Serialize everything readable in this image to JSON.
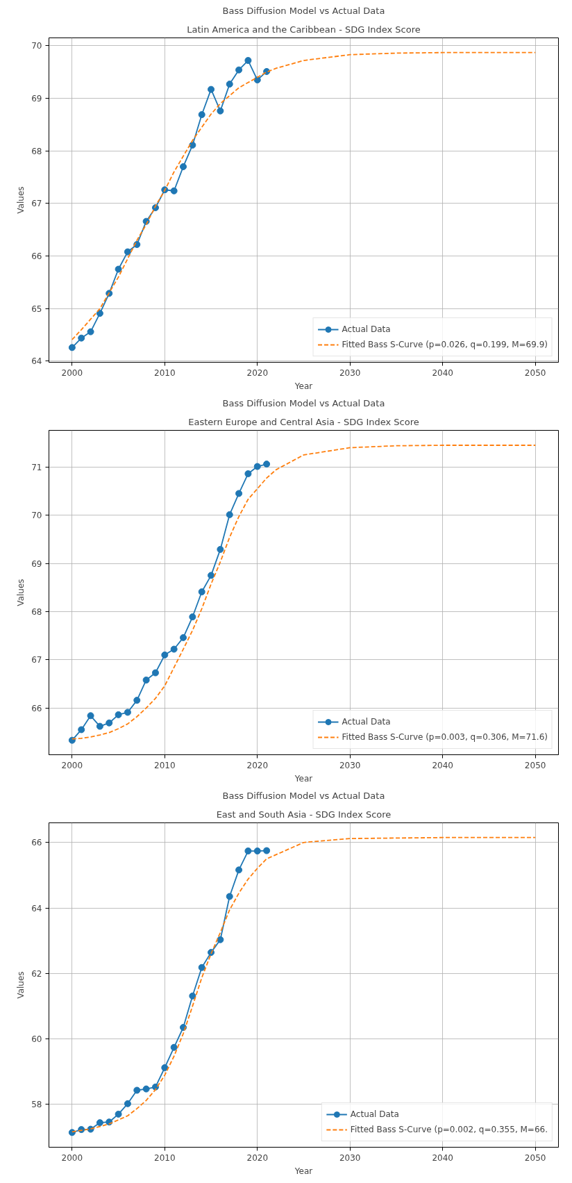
{
  "chart_data": [
    {
      "type": "line",
      "title": "Bass Diffusion Model vs Actual Data",
      "subtitle": "Latin America and the Caribbean - SDG Index Score",
      "xlabel": "Year",
      "ylabel": "Values",
      "xlim": [
        1997.5,
        2052.5
      ],
      "ylim": [
        63.98,
        70.15
      ],
      "xticks": [
        2000,
        2010,
        2020,
        2030,
        2040,
        2050
      ],
      "yticks": [
        64,
        65,
        66,
        67,
        68,
        69,
        70
      ],
      "grid": true,
      "legend": "bottom right",
      "series": [
        {
          "name": "Actual Data",
          "color": "#1f77b4",
          "marker": "circle",
          "line_style": "solid",
          "x": [
            2000,
            2001,
            2002,
            2003,
            2004,
            2005,
            2006,
            2007,
            2008,
            2009,
            2010,
            2011,
            2012,
            2013,
            2014,
            2015,
            2016,
            2017,
            2018,
            2019,
            2020,
            2021
          ],
          "values": [
            64.26,
            64.44,
            64.56,
            64.91,
            65.29,
            65.75,
            66.08,
            66.22,
            66.66,
            66.92,
            67.26,
            67.24,
            67.7,
            68.11,
            68.69,
            69.17,
            68.76,
            69.27,
            69.54,
            69.72,
            69.35,
            69.51
          ]
        },
        {
          "name": "Fitted Bass S-Curve (p=0.026, q=0.199, M=69.9)",
          "color": "#ff7f0e",
          "marker": "none",
          "line_style": "dashed",
          "x": [
            2000,
            2001,
            2002,
            2003,
            2004,
            2005,
            2006,
            2007,
            2008,
            2009,
            2010,
            2011,
            2012,
            2013,
            2014,
            2015,
            2016,
            2017,
            2018,
            2019,
            2020,
            2021,
            2022,
            2025,
            2030,
            2035,
            2040,
            2050
          ],
          "values": [
            64.41,
            64.6,
            64.8,
            65.0,
            65.3,
            65.6,
            65.95,
            66.3,
            66.6,
            66.95,
            67.25,
            67.6,
            67.9,
            68.2,
            68.45,
            68.7,
            68.9,
            69.05,
            69.2,
            69.3,
            69.4,
            69.5,
            69.57,
            69.72,
            69.83,
            69.86,
            69.87,
            69.87
          ]
        }
      ]
    },
    {
      "type": "line",
      "title": "Bass Diffusion Model vs Actual Data",
      "subtitle": "Eastern Europe and Central Asia - SDG Index Score",
      "xlabel": "Year",
      "ylabel": "Values",
      "xlim": [
        1997.5,
        2052.5
      ],
      "ylim": [
        65.03,
        71.76
      ],
      "xticks": [
        2000,
        2010,
        2020,
        2030,
        2040,
        2050
      ],
      "yticks": [
        66,
        67,
        68,
        69,
        70,
        71
      ],
      "grid": true,
      "legend": "bottom right",
      "series": [
        {
          "name": "Actual Data",
          "color": "#1f77b4",
          "marker": "circle",
          "line_style": "solid",
          "x": [
            2000,
            2001,
            2002,
            2003,
            2004,
            2005,
            2006,
            2007,
            2008,
            2009,
            2010,
            2011,
            2012,
            2013,
            2014,
            2015,
            2016,
            2017,
            2018,
            2019,
            2020,
            2021
          ],
          "values": [
            65.33,
            65.55,
            65.84,
            65.62,
            65.69,
            65.86,
            65.91,
            66.16,
            66.58,
            66.73,
            67.1,
            67.22,
            67.46,
            67.89,
            68.41,
            68.75,
            69.29,
            70.01,
            70.45,
            70.86,
            71.01,
            71.06
          ]
        },
        {
          "name": "Fitted Bass S-Curve (p=0.003, q=0.306, M=71.6)",
          "color": "#ff7f0e",
          "marker": "none",
          "line_style": "dashed",
          "x": [
            2000,
            2001,
            2002,
            2003,
            2004,
            2005,
            2006,
            2007,
            2008,
            2009,
            2010,
            2011,
            2012,
            2013,
            2014,
            2015,
            2016,
            2017,
            2018,
            2019,
            2020,
            2021,
            2022,
            2025,
            2030,
            2035,
            2040,
            2050
          ],
          "values": [
            65.36,
            65.37,
            65.4,
            65.44,
            65.49,
            65.57,
            65.67,
            65.82,
            66.0,
            66.2,
            66.46,
            66.84,
            67.22,
            67.61,
            68.06,
            68.57,
            69.03,
            69.54,
            69.97,
            70.33,
            70.55,
            70.77,
            70.94,
            71.25,
            71.4,
            71.44,
            71.45,
            71.45
          ]
        }
      ]
    },
    {
      "type": "line",
      "title": "Bass Diffusion Model vs Actual Data",
      "subtitle": "East and South Asia - SDG Index Score",
      "xlabel": "Year",
      "ylabel": "Values",
      "xlim": [
        1997.5,
        2052.5
      ],
      "ylim": [
        56.69,
        66.6
      ],
      "xticks": [
        2000,
        2010,
        2020,
        2030,
        2040,
        2050
      ],
      "yticks": [
        58,
        60,
        62,
        64,
        66
      ],
      "grid": true,
      "legend": "bottom right",
      "series": [
        {
          "name": "Actual Data",
          "color": "#1f77b4",
          "marker": "circle",
          "line_style": "solid",
          "x": [
            2000,
            2001,
            2002,
            2003,
            2004,
            2005,
            2006,
            2007,
            2008,
            2009,
            2010,
            2011,
            2012,
            2013,
            2014,
            2015,
            2016,
            2017,
            2018,
            2019,
            2020,
            2021
          ],
          "values": [
            57.14,
            57.23,
            57.24,
            57.44,
            57.46,
            57.7,
            58.02,
            58.43,
            58.47,
            58.53,
            59.12,
            59.74,
            60.35,
            61.31,
            62.18,
            62.64,
            63.03,
            64.35,
            65.16,
            65.74,
            65.74,
            65.75
          ]
        },
        {
          "name": "Fitted Bass S-Curve (p=0.002, q=0.355, M=66.",
          "color": "#ff7f0e",
          "marker": "none",
          "line_style": "dashed",
          "x": [
            2000,
            2002,
            2004,
            2006,
            2007,
            2008,
            2009,
            2010,
            2011,
            2012,
            2013,
            2014,
            2015,
            2016,
            2017,
            2018,
            2019,
            2020,
            2021,
            2025,
            2030,
            2040,
            2050
          ],
          "values": [
            57.16,
            57.25,
            57.4,
            57.65,
            57.87,
            58.12,
            58.45,
            58.89,
            59.47,
            60.16,
            61.0,
            61.87,
            62.6,
            63.25,
            63.94,
            64.45,
            64.88,
            65.21,
            65.5,
            66.0,
            66.12,
            66.15,
            66.15
          ]
        }
      ]
    }
  ]
}
